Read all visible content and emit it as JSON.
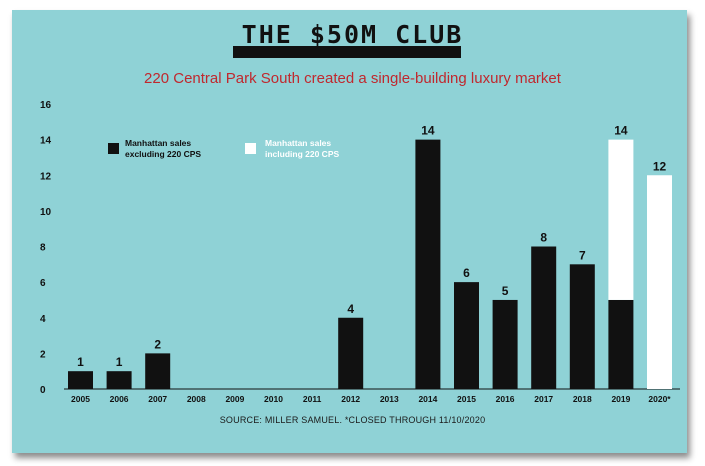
{
  "header": {
    "title": "THE $50M CLUB",
    "subtitle": "220 Central Park South created a single-building luxury market",
    "source": "SOURCE: MILLER SAMUEL. *CLOSED THROUGH 11/10/2020"
  },
  "colors": {
    "background": "#8fd2d6",
    "excluding": "#111111",
    "including": "#ffffff",
    "subtitle": "#c0282e"
  },
  "chart_data": {
    "type": "bar",
    "stacked": true,
    "categories": [
      "2005",
      "2006",
      "2007",
      "2008",
      "2009",
      "2010",
      "2011",
      "2012",
      "2013",
      "2014",
      "2015",
      "2016",
      "2017",
      "2018",
      "2019",
      "2020*"
    ],
    "series": [
      {
        "name": "Manhattan sales excluding 220 CPS",
        "values": [
          1,
          1,
          2,
          0,
          0,
          0,
          0,
          4,
          0,
          14,
          6,
          5,
          8,
          7,
          5,
          0
        ]
      },
      {
        "name": "Manhattan sales including 220 CPS",
        "values": [
          0,
          0,
          0,
          0,
          0,
          0,
          0,
          0,
          0,
          0,
          0,
          0,
          0,
          0,
          9,
          12
        ]
      }
    ],
    "totals_labels": [
      "1",
      "1",
      "2",
      "",
      "",
      "",
      "",
      "4",
      "",
      "14",
      "6",
      "5",
      "8",
      "7",
      "14",
      "12"
    ],
    "ylim": [
      0,
      16
    ],
    "yticks": [
      "0",
      "2",
      "4",
      "6",
      "8",
      "10",
      "12",
      "14",
      "16"
    ],
    "legend": [
      {
        "line1": "Manhattan sales",
        "line2": "excluding 220 CPS"
      },
      {
        "line1": "Manhattan sales",
        "line2": "including 220 CPS"
      }
    ],
    "legend_position": "top-left",
    "grid": false
  }
}
